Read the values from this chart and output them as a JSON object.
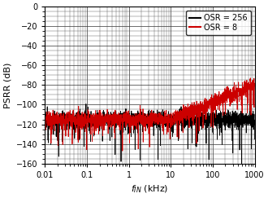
{
  "title": "",
  "xlabel": "$f_{IN}$ (kHz)",
  "ylabel": "PSRR (dB)",
  "xlim": [
    0.01,
    1000
  ],
  "ylim": [
    -160,
    0
  ],
  "yticks": [
    0,
    -20,
    -40,
    -60,
    -80,
    -100,
    -120,
    -140,
    -160
  ],
  "legend": [
    "OSR = 256",
    "OSR = 8"
  ],
  "line_colors": [
    "#000000",
    "#cc0000"
  ],
  "background_color": "#ffffff",
  "plot_bg_color": "#ffffff",
  "seed": 12345,
  "n_points": 2000
}
